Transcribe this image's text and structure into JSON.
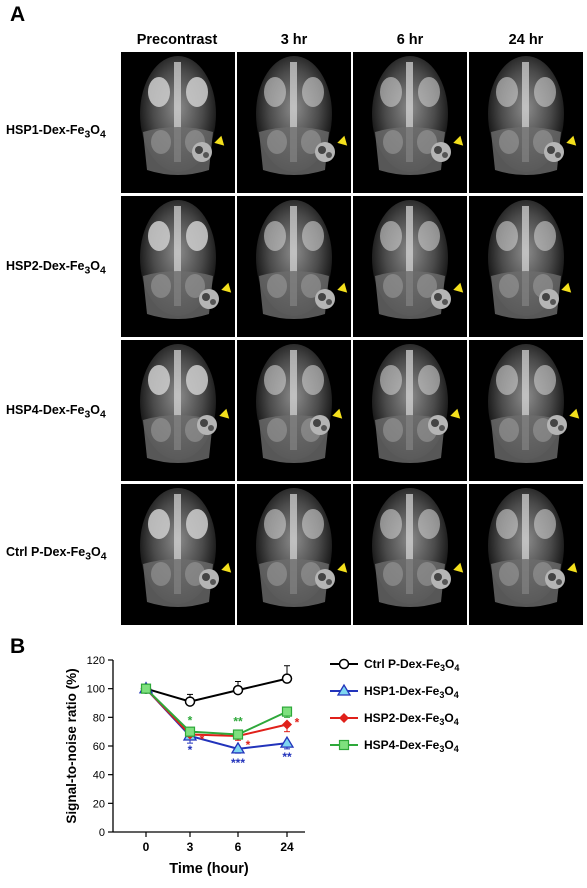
{
  "panel_a": {
    "letter": "A",
    "columns": [
      "Precontrast",
      "3 hr",
      "6 hr",
      "24 hr"
    ],
    "rows": [
      {
        "prefix": "HSP1-Dex-Fe",
        "sub1": "3",
        "mid": "O",
        "sub2": "4"
      },
      {
        "prefix": "HSP2-Dex-Fe",
        "sub1": "3",
        "mid": "O",
        "sub2": "4"
      },
      {
        "prefix": "HSP4-Dex-Fe",
        "sub1": "3",
        "mid": "O",
        "sub2": "4"
      },
      {
        "prefix": "Ctrl P-Dex-Fe",
        "sub1": "3",
        "mid": "O",
        "sub2": "4"
      }
    ],
    "arrow_color": "#f4e01c"
  },
  "panel_b": {
    "letter": "B"
  },
  "chart_data": {
    "type": "line",
    "x": [
      0,
      3,
      6,
      24
    ],
    "xlabel": "Time (hour)",
    "ylabel": "Signal-to-noise ratio (%)",
    "ylim": [
      0,
      120
    ],
    "yticks": [
      0,
      20,
      40,
      60,
      80,
      100,
      120
    ],
    "legend_position": "right",
    "series": [
      {
        "name": "Ctrl P-Dex-Fe3O4",
        "color": "#000000",
        "marker": "circle-open",
        "values": [
          100,
          91,
          99,
          107
        ],
        "errors": [
          0,
          5,
          6,
          9
        ],
        "stars": [
          "",
          "",
          "",
          ""
        ]
      },
      {
        "name": "HSP1-Dex-Fe3O4",
        "color": "#2233bb",
        "marker": "triangle-cyan",
        "values": [
          100,
          67,
          58,
          62
        ],
        "errors": [
          0,
          5,
          3,
          4
        ],
        "stars": [
          "",
          "*",
          "***",
          "**"
        ]
      },
      {
        "name": "HSP2-Dex-Fe3O4",
        "color": "#e0201a",
        "marker": "diamond",
        "values": [
          100,
          68,
          67,
          75
        ],
        "errors": [
          0,
          3,
          3,
          5
        ],
        "stars": [
          "",
          "*",
          "*",
          "*"
        ]
      },
      {
        "name": "HSP4-Dex-Fe3O4",
        "color": "#2ea83a",
        "marker": "square",
        "values": [
          100,
          70,
          68,
          84
        ],
        "errors": [
          0,
          4,
          3,
          4
        ],
        "stars": [
          "",
          "*",
          "**",
          ""
        ]
      }
    ]
  }
}
